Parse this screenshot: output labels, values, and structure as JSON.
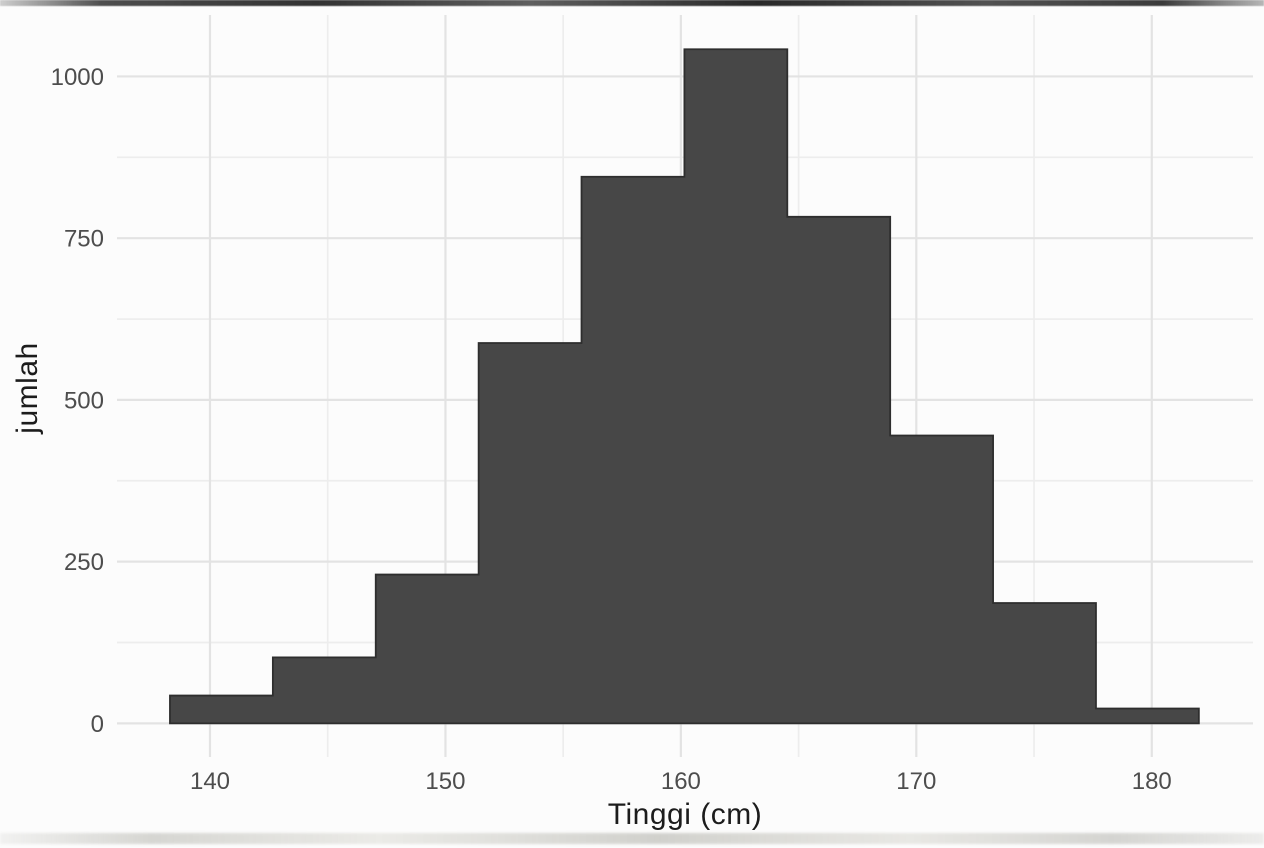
{
  "chart_data": {
    "type": "bar",
    "subtype": "histogram",
    "title": "",
    "xlabel": "Tinggi (cm)",
    "ylabel": "jumlah",
    "bin_edges": [
      138.3,
      142.67,
      147.04,
      151.41,
      155.78,
      160.15,
      164.52,
      168.89,
      173.26,
      177.63,
      182.0
    ],
    "counts": [
      43,
      102,
      230,
      588,
      845,
      1042,
      783,
      445,
      186,
      23
    ],
    "x_ticks": [
      140,
      150,
      160,
      170,
      180
    ],
    "x_minor_ticks": [
      145,
      155,
      165,
      175
    ],
    "y_ticks": [
      0,
      250,
      500,
      750,
      1000
    ],
    "y_minor_ticks": [
      125,
      375,
      625,
      875
    ],
    "x_domain": [
      136.05,
      184.3
    ],
    "y_domain": [
      -52,
      1095
    ],
    "grid": "major and minor, light gray on white panel",
    "legend": "none",
    "colors": {
      "bar_fill": "#474747",
      "bar_edge": "#2e2e2e",
      "grid_major": "#e3e3e3",
      "grid_minor": "#ededed",
      "tick_label": "#4d4d4d",
      "axis_title": "#1c1c1c",
      "background": "#fcfcfc"
    }
  }
}
